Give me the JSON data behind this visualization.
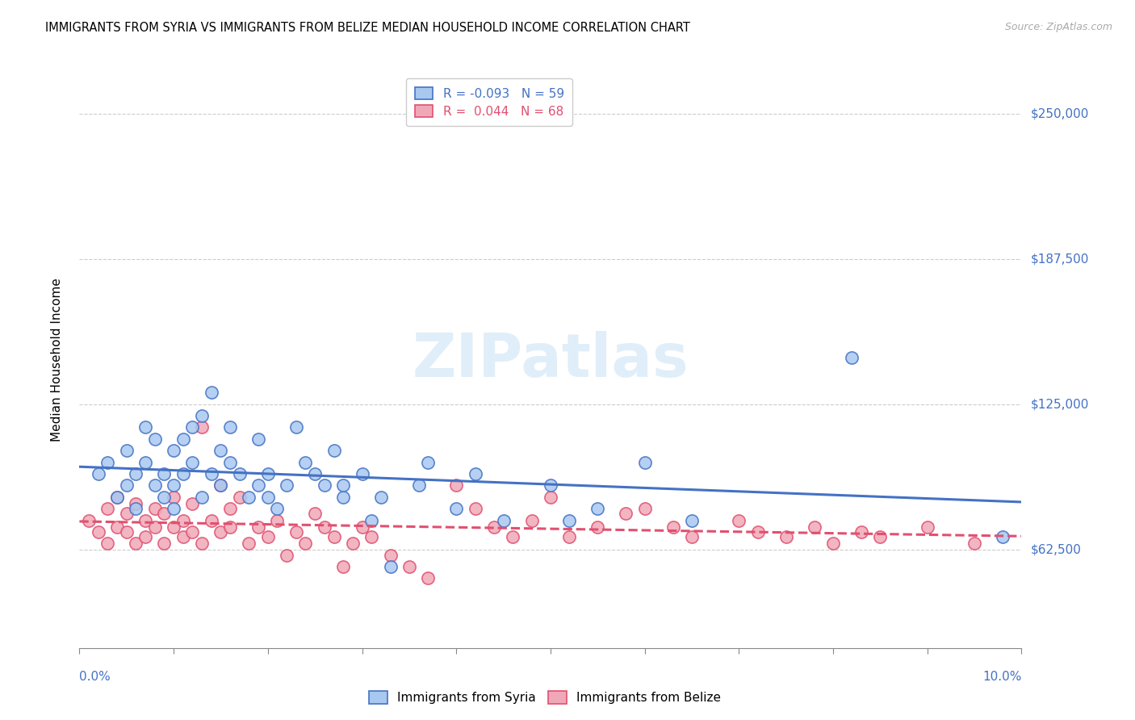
{
  "title": "IMMIGRANTS FROM SYRIA VS IMMIGRANTS FROM BELIZE MEDIAN HOUSEHOLD INCOME CORRELATION CHART",
  "source": "Source: ZipAtlas.com",
  "ylabel": "Median Household Income",
  "yticks": [
    62500,
    125000,
    187500,
    250000
  ],
  "ytick_labels": [
    "$62,500",
    "$125,000",
    "$187,500",
    "$250,000"
  ],
  "xlim": [
    0.0,
    0.1
  ],
  "ylim": [
    20000,
    268000
  ],
  "legend1_label": "R = -0.093   N = 59",
  "legend2_label": "R =  0.044   N = 68",
  "legend_bottom1": "Immigrants from Syria",
  "legend_bottom2": "Immigrants from Belize",
  "watermark": "ZIPatlas",
  "syria_color": "#a8c8f0",
  "belize_color": "#f0a8b8",
  "syria_line_color": "#4472c4",
  "belize_line_color": "#e05070",
  "syria_scatter_x": [
    0.002,
    0.003,
    0.004,
    0.005,
    0.005,
    0.006,
    0.006,
    0.007,
    0.007,
    0.008,
    0.008,
    0.009,
    0.009,
    0.01,
    0.01,
    0.01,
    0.011,
    0.011,
    0.012,
    0.012,
    0.013,
    0.013,
    0.014,
    0.014,
    0.015,
    0.015,
    0.016,
    0.016,
    0.017,
    0.018,
    0.019,
    0.019,
    0.02,
    0.02,
    0.021,
    0.022,
    0.023,
    0.024,
    0.025,
    0.026,
    0.027,
    0.028,
    0.028,
    0.03,
    0.031,
    0.032,
    0.033,
    0.036,
    0.037,
    0.04,
    0.042,
    0.045,
    0.05,
    0.052,
    0.055,
    0.06,
    0.065,
    0.082,
    0.098
  ],
  "syria_scatter_y": [
    95000,
    100000,
    85000,
    90000,
    105000,
    80000,
    95000,
    100000,
    115000,
    90000,
    110000,
    85000,
    95000,
    80000,
    90000,
    105000,
    95000,
    110000,
    100000,
    115000,
    85000,
    120000,
    95000,
    130000,
    90000,
    105000,
    115000,
    100000,
    95000,
    85000,
    110000,
    90000,
    95000,
    85000,
    80000,
    90000,
    115000,
    100000,
    95000,
    90000,
    105000,
    85000,
    90000,
    95000,
    75000,
    85000,
    55000,
    90000,
    100000,
    80000,
    95000,
    75000,
    90000,
    75000,
    80000,
    100000,
    75000,
    145000,
    68000
  ],
  "belize_scatter_x": [
    0.001,
    0.002,
    0.003,
    0.003,
    0.004,
    0.004,
    0.005,
    0.005,
    0.006,
    0.006,
    0.007,
    0.007,
    0.008,
    0.008,
    0.009,
    0.009,
    0.01,
    0.01,
    0.011,
    0.011,
    0.012,
    0.012,
    0.013,
    0.013,
    0.014,
    0.015,
    0.015,
    0.016,
    0.016,
    0.017,
    0.018,
    0.019,
    0.02,
    0.021,
    0.022,
    0.023,
    0.024,
    0.025,
    0.026,
    0.027,
    0.028,
    0.029,
    0.03,
    0.031,
    0.033,
    0.035,
    0.037,
    0.04,
    0.042,
    0.044,
    0.046,
    0.048,
    0.05,
    0.052,
    0.055,
    0.058,
    0.06,
    0.063,
    0.065,
    0.07,
    0.072,
    0.075,
    0.078,
    0.08,
    0.083,
    0.085,
    0.09,
    0.095
  ],
  "belize_scatter_y": [
    75000,
    70000,
    65000,
    80000,
    72000,
    85000,
    70000,
    78000,
    65000,
    82000,
    75000,
    68000,
    80000,
    72000,
    65000,
    78000,
    72000,
    85000,
    68000,
    75000,
    70000,
    82000,
    65000,
    115000,
    75000,
    70000,
    90000,
    80000,
    72000,
    85000,
    65000,
    72000,
    68000,
    75000,
    60000,
    70000,
    65000,
    78000,
    72000,
    68000,
    55000,
    65000,
    72000,
    68000,
    60000,
    55000,
    50000,
    90000,
    80000,
    72000,
    68000,
    75000,
    85000,
    68000,
    72000,
    78000,
    80000,
    72000,
    68000,
    75000,
    70000,
    68000,
    72000,
    65000,
    70000,
    68000,
    72000,
    65000
  ]
}
